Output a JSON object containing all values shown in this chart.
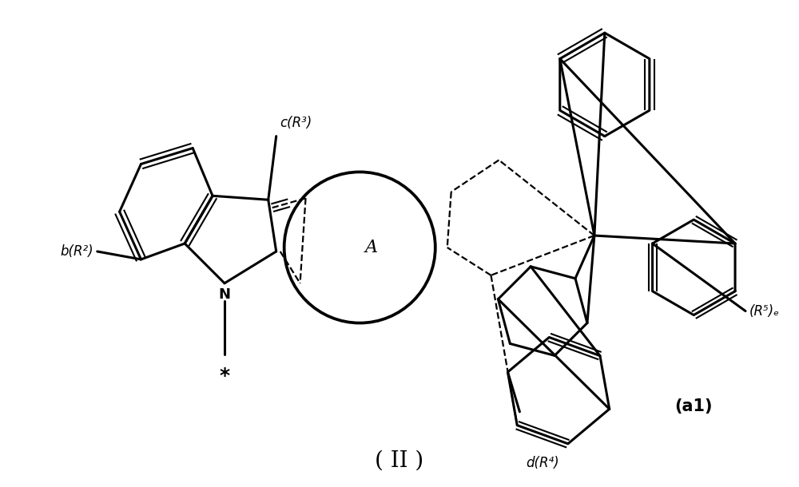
{
  "background_color": "#ffffff",
  "line_color": "#000000",
  "label_II": "( II )",
  "label_a1": "(a1)",
  "label_A": "A",
  "label_N": "N",
  "label_star": "*",
  "label_b_R2": "b(R²)",
  "label_c_R3": "c(R³)",
  "label_d_R4": "d(R⁴)",
  "label_R5_e": "(R⁵)ₑ",
  "fig_width": 10.0,
  "fig_height": 6.1,
  "lw_bold": 2.2,
  "lw_thin": 1.5,
  "lw_dash": 1.6
}
